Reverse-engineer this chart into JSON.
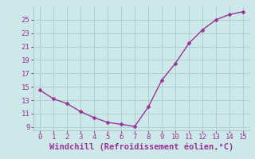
{
  "x": [
    0,
    1,
    2,
    3,
    4,
    5,
    6,
    7,
    8,
    9,
    10,
    11,
    12,
    13,
    14,
    15
  ],
  "y": [
    14.5,
    13.2,
    12.5,
    11.3,
    10.4,
    9.7,
    9.4,
    9.1,
    12.0,
    16.0,
    18.5,
    21.5,
    23.5,
    25.0,
    25.8,
    26.2
  ],
  "line_color": "#993399",
  "marker_color": "#993399",
  "bg_color": "#cce8e8",
  "grid_color": "#aacccc",
  "xlabel": "Windchill (Refroidissement éolien,°C)",
  "xlim": [
    -0.5,
    15.5
  ],
  "ylim": [
    8.5,
    27
  ],
  "xticks": [
    0,
    1,
    2,
    3,
    4,
    5,
    6,
    7,
    8,
    9,
    10,
    11,
    12,
    13,
    14,
    15
  ],
  "yticks": [
    9,
    11,
    13,
    15,
    17,
    19,
    21,
    23,
    25
  ],
  "xlabel_color": "#993399",
  "tick_color": "#993399",
  "xlabel_fontsize": 7.5,
  "tick_fontsize": 6.5,
  "marker_size": 2.5,
  "line_width": 1.0
}
